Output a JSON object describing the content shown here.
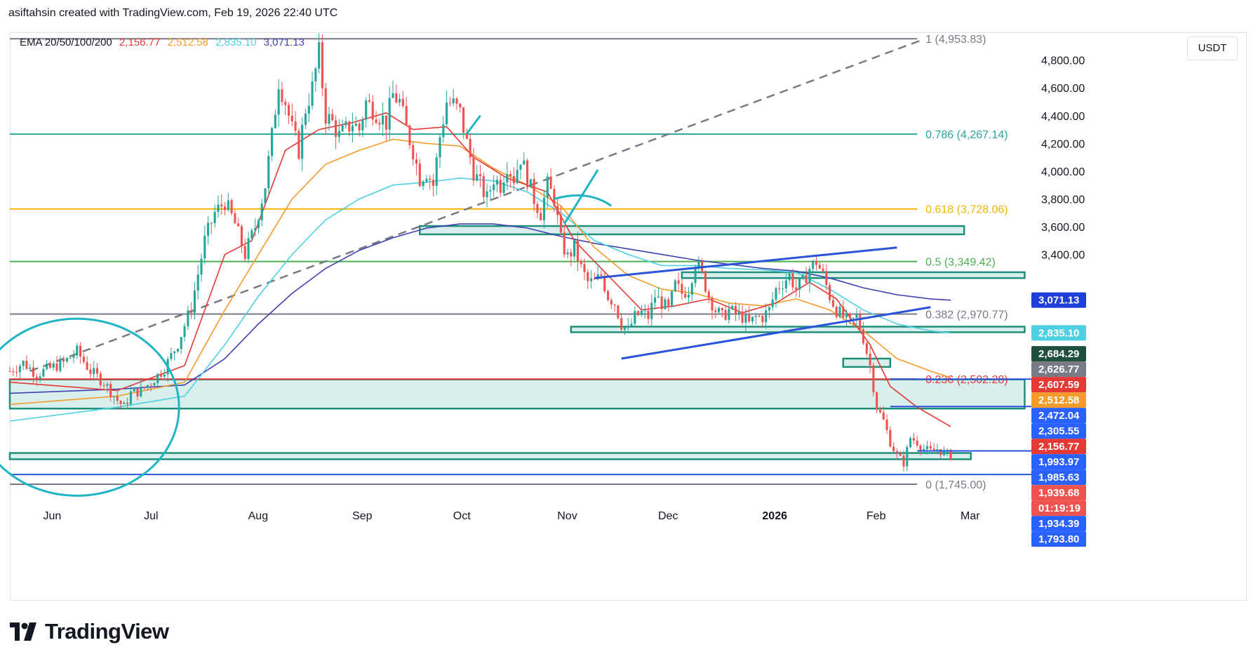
{
  "header": {
    "attribution": "asiftahsin created with TradingView.com, Feb 19, 2026 22:40 UTC"
  },
  "legend": {
    "label": "EMA 20/50/100/200",
    "values": [
      {
        "text": "2,156.77",
        "color": "#e53935"
      },
      {
        "text": "2,512.58",
        "color": "#f59b2c"
      },
      {
        "text": "2,835.10",
        "color": "#4dd0e1"
      },
      {
        "text": "3,071.13",
        "color": "#3f3fb0"
      }
    ]
  },
  "currency": "USDT",
  "footer": {
    "brand": "TradingView"
  },
  "chart_data": {
    "type": "candlestick",
    "symbol_quote": "USDT",
    "ylim": [
      1745,
      4960
    ],
    "y_ticks": [
      3400,
      3600,
      3800,
      4000,
      4200,
      4400,
      4600,
      4800
    ],
    "y_tick_labels": [
      "3,400.00",
      "3,600.00",
      "3,800.00",
      "4,000.00",
      "4,200.00",
      "4,400.00",
      "4,600.00",
      "4,800.00"
    ],
    "x_labels": [
      {
        "text": "Jun",
        "day": 0,
        "bold": false
      },
      {
        "text": "Jul",
        "day": 30,
        "bold": false
      },
      {
        "text": "Aug",
        "day": 61,
        "bold": false
      },
      {
        "text": "Sep",
        "day": 92,
        "bold": false
      },
      {
        "text": "Oct",
        "day": 122,
        "bold": false
      },
      {
        "text": "Nov",
        "day": 153,
        "bold": false
      },
      {
        "text": "Dec",
        "day": 183,
        "bold": false
      },
      {
        "text": "2026",
        "day": 214,
        "bold": true
      },
      {
        "text": "Feb",
        "day": 245,
        "bold": false
      },
      {
        "text": "Mar",
        "day": 273,
        "bold": false
      }
    ],
    "x_range_days": [
      -12,
      292
    ],
    "close_series": [
      [
        -12,
        2560
      ],
      [
        -8,
        2620
      ],
      [
        -4,
        2540
      ],
      [
        0,
        2580
      ],
      [
        4,
        2620
      ],
      [
        8,
        2700
      ],
      [
        12,
        2560
      ],
      [
        16,
        2480
      ],
      [
        20,
        2350
      ],
      [
        22,
        2300
      ],
      [
        24,
        2400
      ],
      [
        27,
        2420
      ],
      [
        30,
        2480
      ],
      [
        34,
        2580
      ],
      [
        38,
        2760
      ],
      [
        42,
        3020
      ],
      [
        46,
        3500
      ],
      [
        49,
        3700
      ],
      [
        52,
        3780
      ],
      [
        55,
        3620
      ],
      [
        58,
        3400
      ],
      [
        61,
        3600
      ],
      [
        64,
        3900
      ],
      [
        66,
        4250
      ],
      [
        68,
        4650
      ],
      [
        70,
        4500
      ],
      [
        72,
        4300
      ],
      [
        74,
        4150
      ],
      [
        76,
        4450
      ],
      [
        78,
        4600
      ],
      [
        80,
        4850
      ],
      [
        82,
        4400
      ],
      [
        84,
        4350
      ],
      [
        86,
        4250
      ],
      [
        88,
        4300
      ],
      [
        90,
        4350
      ],
      [
        92,
        4300
      ],
      [
        94,
        4500
      ],
      [
        96,
        4450
      ],
      [
        98,
        4400
      ],
      [
        100,
        4350
      ],
      [
        102,
        4550
      ],
      [
        104,
        4500
      ],
      [
        106,
        4300
      ],
      [
        108,
        4150
      ],
      [
        110,
        3950
      ],
      [
        112,
        4000
      ],
      [
        114,
        3900
      ],
      [
        116,
        4250
      ],
      [
        118,
        4500
      ],
      [
        120,
        4480
      ],
      [
        122,
        4420
      ],
      [
        124,
        4200
      ],
      [
        126,
        4000
      ],
      [
        128,
        3900
      ],
      [
        130,
        3800
      ],
      [
        132,
        3950
      ],
      [
        134,
        3900
      ],
      [
        136,
        4050
      ],
      [
        138,
        3950
      ],
      [
        140,
        4100
      ],
      [
        142,
        3950
      ],
      [
        144,
        3800
      ],
      [
        146,
        3700
      ],
      [
        148,
        3900
      ],
      [
        150,
        3800
      ],
      [
        152,
        3500
      ],
      [
        154,
        3380
      ],
      [
        156,
        3450
      ],
      [
        158,
        3300
      ],
      [
        160,
        3200
      ],
      [
        162,
        3200
      ],
      [
        164,
        3250
      ],
      [
        166,
        3100
      ],
      [
        168,
        3050
      ],
      [
        170,
        2900
      ],
      [
        172,
        2850
      ],
      [
        174,
        2950
      ],
      [
        176,
        2980
      ],
      [
        178,
        2950
      ],
      [
        180,
        3100
      ],
      [
        182,
        3050
      ],
      [
        184,
        3000
      ],
      [
        186,
        3180
      ],
      [
        188,
        3120
      ],
      [
        190,
        3150
      ],
      [
        192,
        3350
      ],
      [
        194,
        3250
      ],
      [
        196,
        3100
      ],
      [
        198,
        3000
      ],
      [
        200,
        2950
      ],
      [
        202,
        3000
      ],
      [
        204,
        2970
      ],
      [
        206,
        2950
      ],
      [
        208,
        2900
      ],
      [
        210,
        2950
      ],
      [
        212,
        2950
      ],
      [
        214,
        3000
      ],
      [
        216,
        3150
      ],
      [
        218,
        3200
      ],
      [
        220,
        3250
      ],
      [
        222,
        3150
      ],
      [
        224,
        3200
      ],
      [
        226,
        3300
      ],
      [
        228,
        3350
      ],
      [
        230,
        3250
      ],
      [
        232,
        3100
      ],
      [
        234,
        3000
      ],
      [
        236,
        2950
      ],
      [
        238,
        2900
      ],
      [
        240,
        2950
      ],
      [
        242,
        2800
      ],
      [
        244,
        2600
      ],
      [
        246,
        2300
      ],
      [
        248,
        2200
      ],
      [
        250,
        2050
      ],
      [
        252,
        1950
      ],
      [
        254,
        1900
      ],
      [
        256,
        2080
      ],
      [
        258,
        2050
      ],
      [
        260,
        2000
      ],
      [
        262,
        1980
      ],
      [
        264,
        2000
      ],
      [
        266,
        1970
      ],
      [
        268,
        1950
      ]
    ],
    "ema_20": [
      [
        -12,
        2480
      ],
      [
        20,
        2420
      ],
      [
        40,
        2600
      ],
      [
        52,
        3400
      ],
      [
        60,
        3500
      ],
      [
        70,
        4150
      ],
      [
        80,
        4300
      ],
      [
        90,
        4350
      ],
      [
        100,
        4420
      ],
      [
        108,
        4300
      ],
      [
        118,
        4320
      ],
      [
        126,
        4100
      ],
      [
        136,
        3950
      ],
      [
        148,
        3850
      ],
      [
        156,
        3500
      ],
      [
        166,
        3250
      ],
      [
        176,
        3000
      ],
      [
        186,
        3030
      ],
      [
        196,
        3080
      ],
      [
        206,
        2980
      ],
      [
        216,
        3050
      ],
      [
        226,
        3200
      ],
      [
        234,
        3080
      ],
      [
        244,
        2750
      ],
      [
        250,
        2450
      ],
      [
        258,
        2300
      ],
      [
        268,
        2160
      ]
    ],
    "ema_50": [
      [
        -12,
        2320
      ],
      [
        20,
        2380
      ],
      [
        40,
        2480
      ],
      [
        52,
        3000
      ],
      [
        62,
        3400
      ],
      [
        72,
        3800
      ],
      [
        82,
        4050
      ],
      [
        92,
        4150
      ],
      [
        102,
        4230
      ],
      [
        112,
        4200
      ],
      [
        122,
        4180
      ],
      [
        132,
        4020
      ],
      [
        142,
        3900
      ],
      [
        152,
        3750
      ],
      [
        162,
        3450
      ],
      [
        172,
        3250
      ],
      [
        182,
        3150
      ],
      [
        192,
        3120
      ],
      [
        202,
        3050
      ],
      [
        212,
        3030
      ],
      [
        222,
        3080
      ],
      [
        232,
        3000
      ],
      [
        242,
        2850
      ],
      [
        252,
        2650
      ],
      [
        262,
        2560
      ],
      [
        268,
        2512
      ]
    ],
    "ema_100": [
      [
        -12,
        2200
      ],
      [
        20,
        2300
      ],
      [
        40,
        2380
      ],
      [
        52,
        2750
      ],
      [
        62,
        3100
      ],
      [
        72,
        3400
      ],
      [
        82,
        3650
      ],
      [
        92,
        3800
      ],
      [
        102,
        3900
      ],
      [
        112,
        3920
      ],
      [
        122,
        3950
      ],
      [
        132,
        3930
      ],
      [
        142,
        3850
      ],
      [
        152,
        3700
      ],
      [
        162,
        3500
      ],
      [
        172,
        3400
      ],
      [
        182,
        3320
      ],
      [
        192,
        3320
      ],
      [
        202,
        3300
      ],
      [
        212,
        3290
      ],
      [
        222,
        3270
      ],
      [
        232,
        3150
      ],
      [
        242,
        3000
      ],
      [
        252,
        2900
      ],
      [
        262,
        2850
      ],
      [
        268,
        2835
      ]
    ],
    "ema_200": [
      [
        -12,
        2400
      ],
      [
        20,
        2430
      ],
      [
        40,
        2460
      ],
      [
        52,
        2650
      ],
      [
        62,
        2900
      ],
      [
        72,
        3120
      ],
      [
        82,
        3300
      ],
      [
        92,
        3430
      ],
      [
        102,
        3520
      ],
      [
        112,
        3590
      ],
      [
        122,
        3620
      ],
      [
        132,
        3620
      ],
      [
        142,
        3590
      ],
      [
        152,
        3530
      ],
      [
        162,
        3480
      ],
      [
        172,
        3440
      ],
      [
        182,
        3400
      ],
      [
        192,
        3360
      ],
      [
        202,
        3330
      ],
      [
        212,
        3300
      ],
      [
        222,
        3280
      ],
      [
        232,
        3230
      ],
      [
        242,
        3160
      ],
      [
        252,
        3110
      ],
      [
        262,
        3080
      ],
      [
        268,
        3071
      ]
    ],
    "fibonacci": [
      {
        "ratio": "1",
        "price": 4953.83,
        "label": "1 (4,953.83)",
        "color": "#787b86"
      },
      {
        "ratio": "0.786",
        "price": 4267.14,
        "label": "0.786 (4,267.14)",
        "color": "#26a69a"
      },
      {
        "ratio": "0.618",
        "price": 3728.06,
        "label": "0.618 (3,728.06)",
        "color": "#f5b400"
      },
      {
        "ratio": "0.5",
        "price": 3349.42,
        "label": "0.5 (3,349.42)",
        "color": "#4caf50"
      },
      {
        "ratio": "0.382",
        "price": 2970.77,
        "label": "0.382 (2,970.77)",
        "color": "#787b86"
      },
      {
        "ratio": "0.236",
        "price": 2502.28,
        "label": "0.236 (2,502.28)",
        "color": "#e53935"
      },
      {
        "ratio": "0",
        "price": 1745.0,
        "label": "0 (1,745.00)",
        "color": "#787b86"
      }
    ],
    "fib_trend_line": {
      "from": [
        -6,
        2560
      ],
      "to": [
        260,
        4950
      ]
    },
    "zones": [
      {
        "from_day": 110,
        "to_day": 272,
        "low": 3545,
        "high": 3605
      },
      {
        "from_day": 188,
        "to_day": 290,
        "low": 3230,
        "high": 3272
      },
      {
        "from_day": 155,
        "to_day": 290,
        "low": 2840,
        "high": 2880
      },
      {
        "from_day": 236,
        "to_day": 250,
        "low": 2590,
        "high": 2650
      },
      {
        "from_day": -12,
        "to_day": 290,
        "low": 2290,
        "high": 2500
      },
      {
        "from_day": -12,
        "to_day": 274,
        "low": 1925,
        "high": 1970
      }
    ],
    "channel": [
      {
        "from": [
          162,
          3230
        ],
        "to": [
          252,
          3450
        ]
      },
      {
        "from": [
          170,
          2650
        ],
        "to": [
          262,
          3020
        ]
      }
    ],
    "price_tags": [
      {
        "text": "3,071.13",
        "price": 3071.13,
        "bg": "#1e3fd8"
      },
      {
        "text": "2,835.10",
        "price": 2835.1,
        "bg": "#4dd0e1"
      },
      {
        "text": "2,684.29",
        "price": 2684.29,
        "bg": "#1f4e3d"
      },
      {
        "text": "2,626.77",
        "price": 2626.77,
        "bg": "#787b86"
      },
      {
        "text": "2,607.59",
        "price": 2607.59,
        "bg": "#e53935"
      },
      {
        "text": "2,512.58",
        "price": 2512.58,
        "bg": "#f59b2c"
      },
      {
        "text": "2,472.04",
        "price": 2472.04,
        "bg": "#2962ff"
      },
      {
        "text": "2,305.55",
        "price": 2305.55,
        "bg": "#2962ff"
      },
      {
        "text": "2,156.77",
        "price": 2156.77,
        "bg": "#e53935"
      },
      {
        "text": "1,993.97",
        "price": 1993.97,
        "bg": "#2962ff"
      },
      {
        "text": "1,985.63",
        "price": 1985.63,
        "bg": "#2962ff"
      },
      {
        "text": "1,939.68",
        "price": 1939.68,
        "bg": "#ef5350"
      },
      {
        "text": "01:19:19",
        "price": 1890,
        "bg": "#ef5350"
      },
      {
        "text": "1,934.39",
        "price": 1934.39,
        "bg": "#2962ff"
      },
      {
        "text": "1,793.80",
        "price": 1793.8,
        "bg": "#2962ff"
      }
    ]
  }
}
